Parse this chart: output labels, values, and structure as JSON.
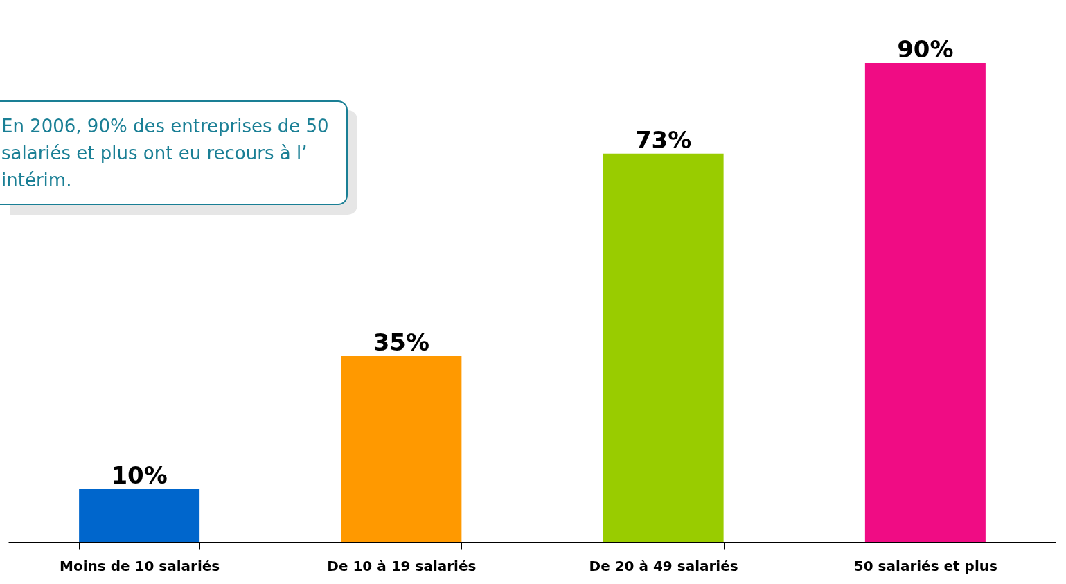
{
  "chart_data": {
    "type": "bar",
    "categories": [
      "Moins de 10 salariés",
      "De 10 à 19 salariés",
      "De 20 à 49 salariés",
      "50 salariés et plus"
    ],
    "values": [
      10,
      35,
      73,
      90
    ],
    "colors": [
      "#0066cc",
      "#ff9900",
      "#99cc00",
      "#f00c84"
    ],
    "value_labels": [
      "10%",
      "35%",
      "73%",
      "90%"
    ],
    "grid": false,
    "legend": false,
    "annotations": [
      "En 2006, 90% des entreprises de 50 salariés et plus ont eu recours à l’ intérim."
    ]
  }
}
